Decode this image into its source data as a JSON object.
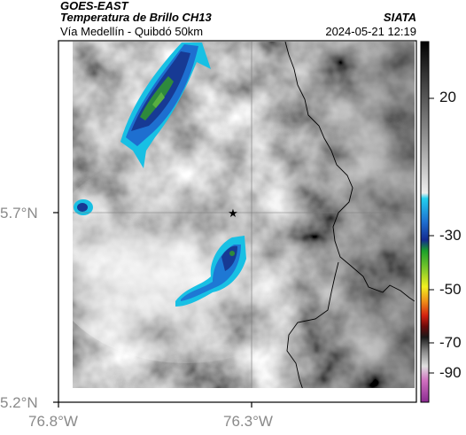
{
  "header": {
    "satellite": "GOES-EAST",
    "product": "Temperatura de Brillo CH13",
    "subtitle": "Vía Medellín - Quibdó 50km",
    "source": "SIATA",
    "datetime": "2024-05-21 12:19"
  },
  "axes": {
    "y_ticks": [
      "5.7°N",
      "5.2°N"
    ],
    "x_ticks": [
      "76.8°W",
      "76.3°W"
    ]
  },
  "colorbar": {
    "ticks": [
      "20",
      "-30",
      "-50",
      "-70",
      "-90"
    ]
  },
  "map": {
    "marker": "star-icon",
    "colors": {
      "cloud_deep": "#1a3a8a",
      "cloud_mid": "#1e6fd0",
      "cloud_edge": "#18b8e0",
      "cloud_core": "#3a9a3a",
      "border_line": "#000000"
    }
  }
}
